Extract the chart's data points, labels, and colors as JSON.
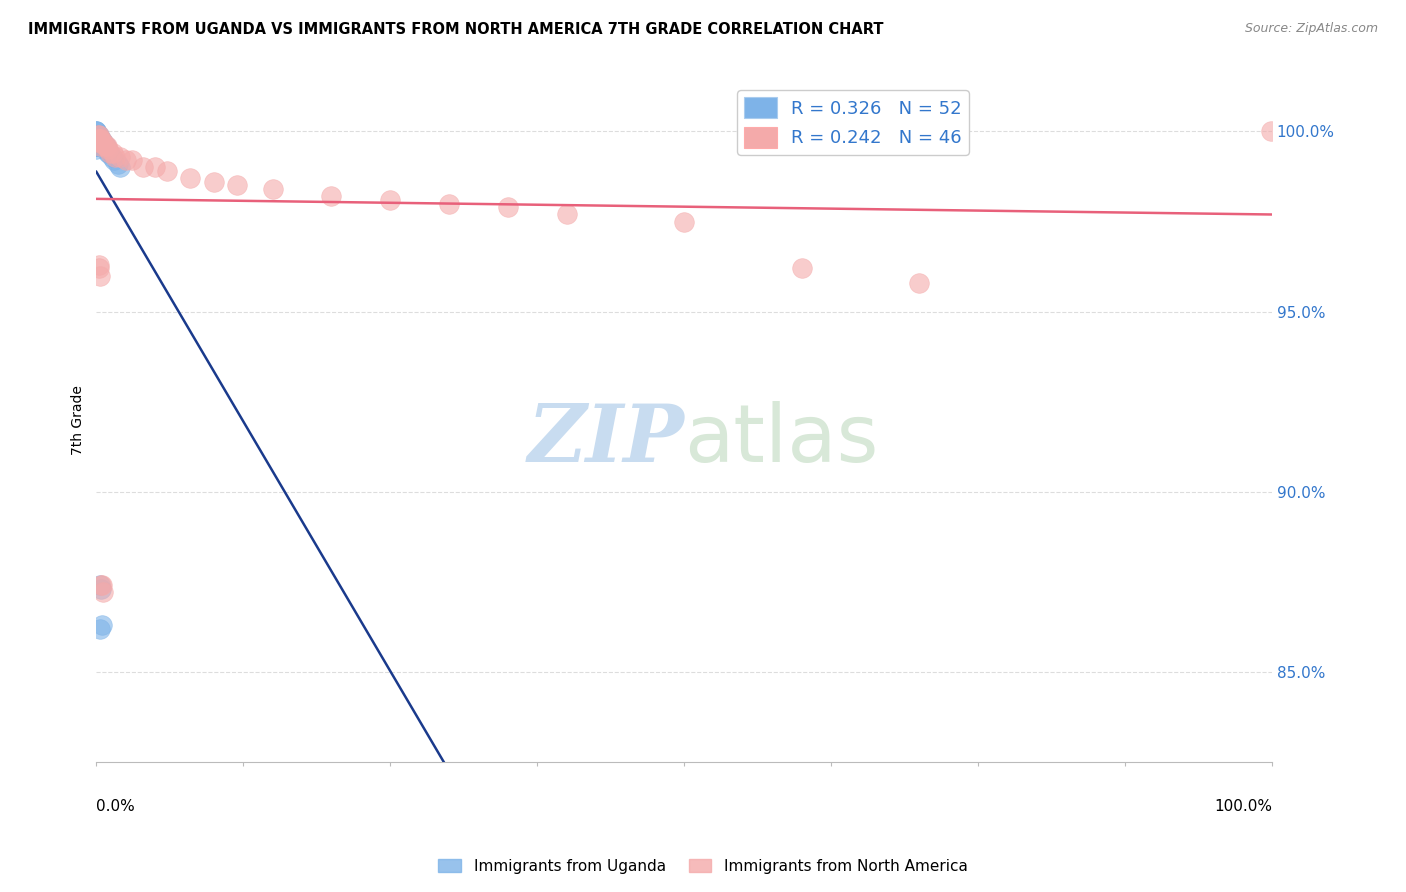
{
  "title": "IMMIGRANTS FROM UGANDA VS IMMIGRANTS FROM NORTH AMERICA 7TH GRADE CORRELATION CHART",
  "source": "Source: ZipAtlas.com",
  "ylabel_label": "7th Grade",
  "ytick_labels": [
    "100.0%",
    "95.0%",
    "90.0%",
    "85.0%"
  ],
  "ytick_values": [
    1.0,
    0.95,
    0.9,
    0.85
  ],
  "xlim": [
    0.0,
    1.0
  ],
  "ylim": [
    0.825,
    1.015
  ],
  "legend1_label": "Immigrants from Uganda",
  "legend2_label": "Immigrants from North America",
  "R_uganda": 0.326,
  "N_uganda": 52,
  "R_north_america": 0.242,
  "N_north_america": 46,
  "color_uganda": "#7EB3E8",
  "color_north_america": "#F4AAAA",
  "color_uganda_line": "#1A3A8C",
  "color_north_america_line": "#E8607A",
  "uganda_x": [
    0.0,
    0.0,
    0.0,
    0.0,
    0.0,
    0.0,
    0.0,
    0.0,
    0.0,
    0.0,
    0.0,
    0.0,
    0.0,
    0.0,
    0.0,
    0.0,
    0.0,
    0.0,
    0.0,
    0.0,
    0.001,
    0.001,
    0.001,
    0.001,
    0.001,
    0.001,
    0.001,
    0.002,
    0.002,
    0.002,
    0.002,
    0.003,
    0.003,
    0.003,
    0.004,
    0.004,
    0.005,
    0.005,
    0.006,
    0.007,
    0.008,
    0.009,
    0.01,
    0.011,
    0.013,
    0.015,
    0.018,
    0.02,
    0.003,
    0.003,
    0.004,
    0.005
  ],
  "uganda_y": [
    1.0,
    1.0,
    1.0,
    0.999,
    0.999,
    0.999,
    0.999,
    0.999,
    0.998,
    0.998,
    0.998,
    0.998,
    0.997,
    0.997,
    0.997,
    0.997,
    0.996,
    0.996,
    0.996,
    0.995,
    0.999,
    0.999,
    0.998,
    0.998,
    0.997,
    0.997,
    0.996,
    0.999,
    0.998,
    0.997,
    0.996,
    0.998,
    0.997,
    0.996,
    0.998,
    0.997,
    0.997,
    0.996,
    0.997,
    0.996,
    0.996,
    0.995,
    0.994,
    0.994,
    0.993,
    0.992,
    0.991,
    0.99,
    0.874,
    0.862,
    0.873,
    0.863
  ],
  "north_america_x": [
    0.001,
    0.001,
    0.001,
    0.001,
    0.002,
    0.002,
    0.002,
    0.003,
    0.003,
    0.003,
    0.004,
    0.004,
    0.005,
    0.006,
    0.007,
    0.008,
    0.009,
    0.01,
    0.012,
    0.014,
    0.016,
    0.02,
    0.025,
    0.03,
    0.04,
    0.05,
    0.06,
    0.08,
    0.1,
    0.12,
    0.15,
    0.2,
    0.25,
    0.3,
    0.35,
    0.4,
    0.5,
    0.6,
    0.7,
    0.999,
    0.002,
    0.002,
    0.003,
    0.004,
    0.005,
    0.006
  ],
  "north_america_y": [
    0.999,
    0.998,
    0.998,
    0.997,
    0.999,
    0.998,
    0.997,
    0.998,
    0.997,
    0.996,
    0.998,
    0.997,
    0.997,
    0.997,
    0.996,
    0.996,
    0.996,
    0.995,
    0.994,
    0.994,
    0.993,
    0.993,
    0.992,
    0.992,
    0.99,
    0.99,
    0.989,
    0.987,
    0.986,
    0.985,
    0.984,
    0.982,
    0.981,
    0.98,
    0.979,
    0.977,
    0.975,
    0.962,
    0.958,
    1.0,
    0.963,
    0.962,
    0.96,
    0.874,
    0.874,
    0.872
  ],
  "watermark_zip": "ZIP",
  "watermark_atlas": "atlas",
  "background_color": "#FFFFFF",
  "grid_color": "#DDDDDD"
}
